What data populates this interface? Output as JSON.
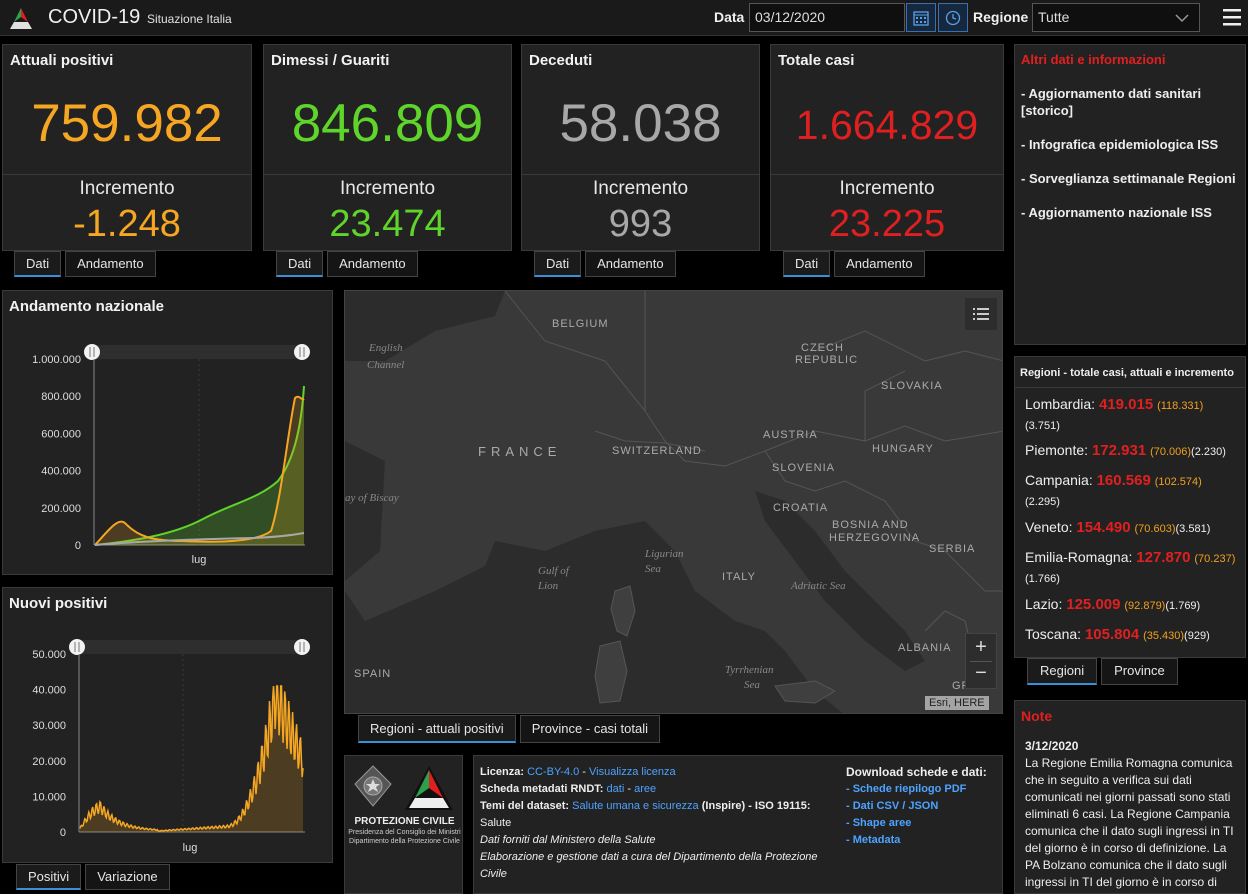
{
  "header": {
    "title": "COVID-19",
    "subtitle": "Situazione Italia",
    "date_label": "Data",
    "date_value": "03/12/2020",
    "region_label": "Regione",
    "region_value": "Tutte"
  },
  "cards": [
    {
      "title": "Attuali positivi",
      "value": "759.982",
      "inc_label": "Incremento",
      "inc_value": "-1.248",
      "color": "#f5a623",
      "tab1": "Dati",
      "tab2": "Andamento"
    },
    {
      "title": "Dimessi / Guariti",
      "value": "846.809",
      "inc_label": "Incremento",
      "inc_value": "23.474",
      "color": "#5fd42a",
      "tab1": "Dati",
      "tab2": "Andamento"
    },
    {
      "title": "Deceduti",
      "value": "58.038",
      "inc_label": "Incremento",
      "inc_value": "993",
      "color": "#a8a8a8",
      "tab1": "Dati",
      "tab2": "Andamento"
    },
    {
      "title": "Totale casi",
      "value": "1.664.829",
      "inc_label": "Incremento",
      "inc_value": "23.225",
      "color": "#e02020",
      "tab1": "Dati",
      "tab2": "Andamento"
    }
  ],
  "info": {
    "title": "Altri dati e informazioni",
    "links": [
      "- Aggiornamento dati sanitari [storico]",
      "- Infografica epidemiologica ISS",
      "- Sorveglianza settimanale Regioni",
      "- Aggiornamento nazionale ISS"
    ]
  },
  "regions": {
    "title": "Regioni - totale casi, attuali e incremento",
    "rows": [
      {
        "name": "Lombardia:",
        "total": "419.015",
        "active": "(118.331)",
        "inc": "(3.751)"
      },
      {
        "name": "Piemonte:",
        "total": "172.931",
        "active": "(70.006)",
        "inc": "(2.230)"
      },
      {
        "name": "Campania:",
        "total": "160.569",
        "active": "(102.574)",
        "inc": "(2.295)"
      },
      {
        "name": "Veneto:",
        "total": "154.490",
        "active": "(70.603)",
        "inc": "(3.581)"
      },
      {
        "name": "Emilia-Romagna:",
        "total": "127.870",
        "active": "(70.237)",
        "inc": "(1.766)"
      },
      {
        "name": "Lazio:",
        "total": "125.009",
        "active": "(92.879)",
        "inc": "(1.769)"
      },
      {
        "name": "Toscana:",
        "total": "105.804",
        "active": "(35.430)",
        "inc": "(929)"
      }
    ],
    "tab1": "Regioni",
    "tab2": "Province"
  },
  "note": {
    "title": "Note",
    "date": "3/12/2020",
    "text": "La Regione Emilia Romagna comunica che in seguito a verifica sui dati comunicati nei giorni passati sono stati eliminati 6 casi. La Regione Campania comunica che il dato sugli ingressi in TI del giorno è in corso di definizione. La PA Bolzano comunica che il dato sugli ingressi in TI del giorno è in corso di"
  },
  "trend": {
    "title": "Andamento nazionale",
    "yticks": [
      "1.000.000",
      "800.000",
      "600.000",
      "400.000",
      "200.000",
      "0"
    ],
    "xtick": "lug",
    "colors": {
      "positivi": "#f5a623",
      "guariti": "#5fd42a",
      "deceduti": "#a8a8a8"
    }
  },
  "new_pos": {
    "title": "Nuovi positivi",
    "yticks": [
      "50.000",
      "40.000",
      "30.000",
      "20.000",
      "10.000",
      "0"
    ],
    "xtick": "lug",
    "tab1": "Positivi",
    "tab2": "Variazione"
  },
  "map": {
    "labels": [
      "BELGIUM",
      "CZECH",
      "REPUBLIC",
      "SLOVAKIA",
      "FRANCE",
      "SWITZERLAND",
      "AUSTRIA",
      "HUNGARY",
      "SLOVENIA",
      "CROATIA",
      "BOSNIA AND",
      "HERZEGOVINA",
      "SERBIA",
      "ITALY",
      "SPAIN",
      "ALBANIA",
      "GR"
    ],
    "seas": [
      "English",
      "Channel",
      "ay of Biscay",
      "Ligurian",
      "Sea",
      "Gulf of",
      "Lion",
      "Adriatic Sea",
      "Tyrrhenian",
      "Sea"
    ],
    "credit": "Esri, HERE",
    "zoom_in": "+",
    "zoom_out": "−",
    "tab1": "Regioni - attuali positivi",
    "tab2": "Province - casi totali"
  },
  "footer": {
    "org": "PROTEZIONE CIVILE",
    "org_sub1": "Presidenza del Consiglio dei Ministri",
    "org_sub2": "Dipartimento della Protezione Civile",
    "licenza_lbl": "Licenza:",
    "licenza_val": "CC-BY-4.0",
    "licenza_sep": " - ",
    "licenza_link": "Visualizza licenza",
    "scheda_lbl": "Scheda metadati RNDT:",
    "scheda_dati": "dati",
    "scheda_aree": "aree",
    "temi_lbl": "Temi del dataset:",
    "temi_val": "Salute umana e sicurezza",
    "temi_rest": "(Inspire) - ISO 19115:",
    "temi_salute": "Salute",
    "line1": "Dati forniti dal Ministero della Salute",
    "line2": "Elaborazione e gestione dati a cura del Dipartimento della Protezione Civile",
    "dl_title": "Download schede e dati:",
    "dl_links": [
      "- Schede riepilogo PDF",
      "- Dati CSV / JSON",
      "- Shape aree",
      "- Metadata"
    ]
  }
}
